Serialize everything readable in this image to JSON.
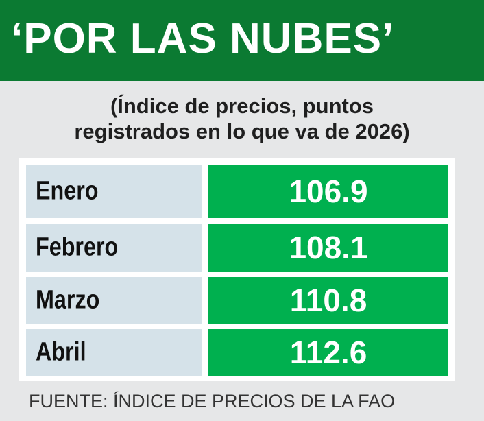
{
  "header": {
    "title": "‘POR LAS NUBES’"
  },
  "subtitle": {
    "lines": [
      "(Índice de precios, puntos",
      "registrados en lo que va de 2026)"
    ]
  },
  "table": {
    "rows": [
      [
        "Enero",
        106.9
      ],
      [
        "Febrero",
        108.1
      ],
      [
        "Marzo",
        110.8
      ],
      [
        "Abril",
        112.6
      ]
    ]
  },
  "source": "FUENTE: ÍNDICE DE PRECIOS DE LA FAO"
}
